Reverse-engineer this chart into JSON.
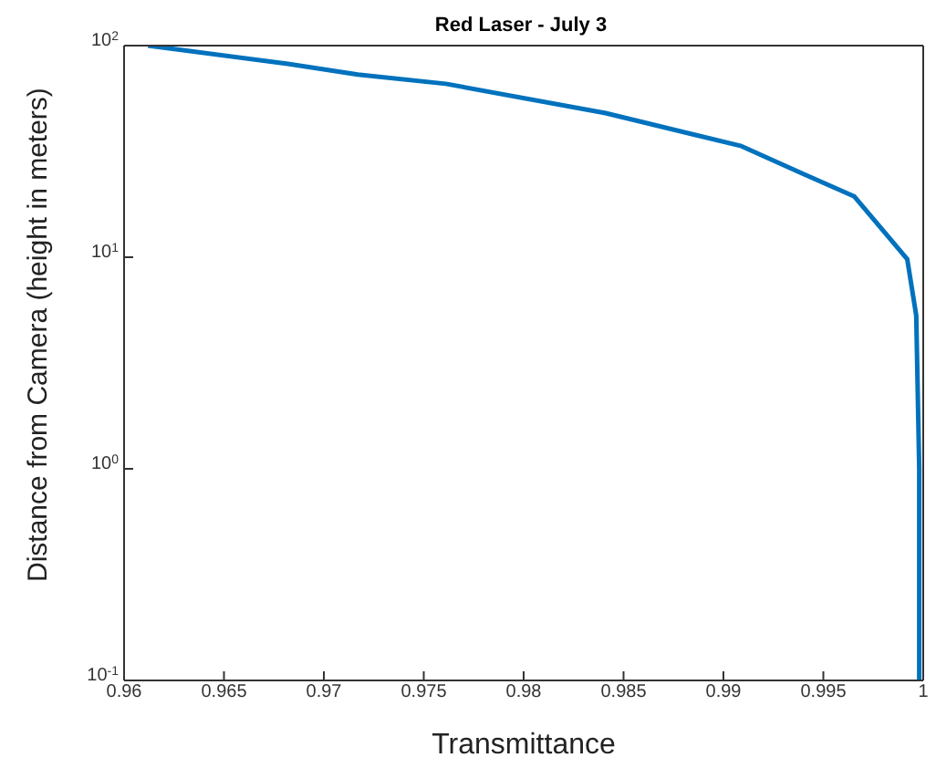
{
  "chart_data": {
    "type": "line",
    "title": "Red Laser - July 3",
    "xlabel": "Transmittance",
    "ylabel": "Distance from Camera (height in meters)",
    "x": [
      0.9612,
      0.9682,
      0.9717,
      0.9761,
      0.9841,
      0.9909,
      0.9939,
      0.99654,
      0.9992,
      0.99965,
      0.9998,
      0.9998
    ],
    "series": [
      {
        "color": "#0072bd",
        "values": [
          100,
          82,
          73,
          66,
          48,
          33.5,
          25,
          19.4,
          9.8,
          5.3,
          1,
          0.1
        ]
      }
    ],
    "log": "y",
    "xlim": [
      0.96,
      1
    ],
    "ylim": [
      0.1,
      100
    ],
    "xticks": [
      0.96,
      0.965,
      0.97,
      0.975,
      0.98,
      0.985,
      0.99,
      0.995,
      1
    ],
    "yticks": [
      {
        "value": 0.1,
        "label": "10$^{-1}$"
      },
      {
        "value": 1,
        "label": "10$^{0}$"
      },
      {
        "value": 10,
        "label": "10$^{1}$"
      },
      {
        "value": 100,
        "label": "10$^{2}$"
      }
    ],
    "grid": false,
    "legend": false,
    "marker": "none",
    "line_style": "solid"
  }
}
